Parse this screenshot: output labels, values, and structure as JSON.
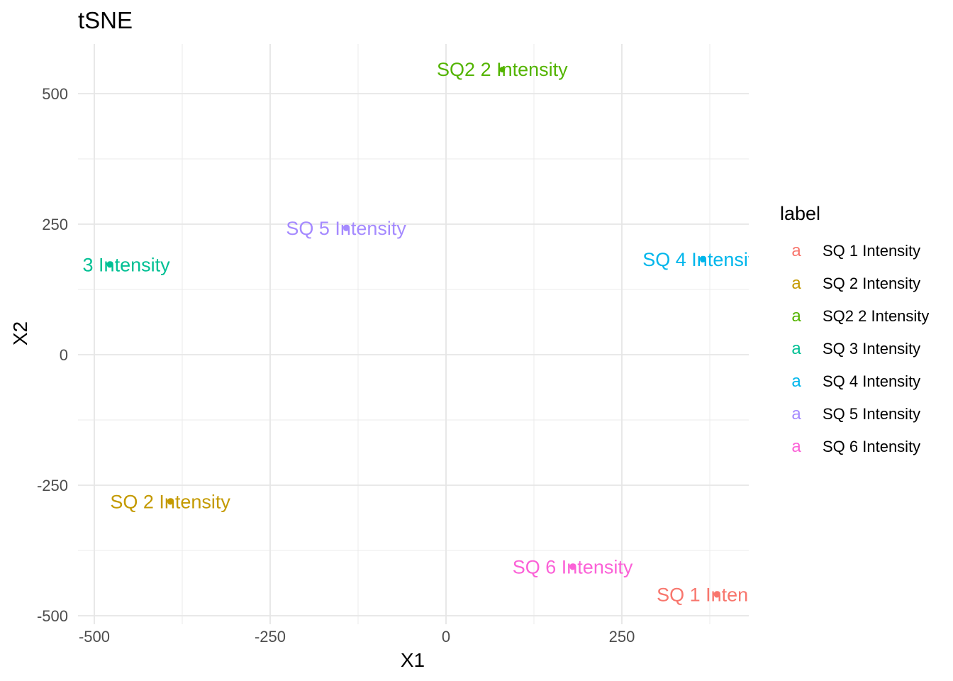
{
  "chart_data": {
    "type": "scatter",
    "title": "tSNE",
    "xlabel": "X1",
    "ylabel": "X2",
    "xlim": [
      -500,
      430
    ],
    "ylim": [
      -500,
      590
    ],
    "x_ticks": [
      -500,
      -250,
      0,
      250
    ],
    "x_tick_labels": [
      "-500",
      "-250",
      "0",
      "250"
    ],
    "y_ticks": [
      -500,
      -250,
      0,
      250,
      500
    ],
    "y_tick_labels": [
      "-500",
      "-250",
      "0",
      "250",
      "500"
    ],
    "grid": true,
    "legend": {
      "title": "label",
      "position": "right",
      "key_glyph": "a",
      "entries": [
        {
          "name": "SQ 1 Intensity",
          "color": "#F8766D"
        },
        {
          "name": "SQ 2 Intensity",
          "color": "#C49A00"
        },
        {
          "name": "SQ2 2 Intensity",
          "color": "#53B400"
        },
        {
          "name": "SQ 3 Intensity",
          "color": "#00C094"
        },
        {
          "name": "SQ 4 Intensity",
          "color": "#00B6EB"
        },
        {
          "name": "SQ 5 Intensity",
          "color": "#A58AFF"
        },
        {
          "name": "SQ 6 Intensity",
          "color": "#FB61D7"
        }
      ]
    },
    "series": [
      {
        "name": "SQ 1 Intensity",
        "color": "#F8766D",
        "x": 385,
        "y": -460,
        "label": "SQ 1 Intensity"
      },
      {
        "name": "SQ 2 Intensity",
        "color": "#C49A00",
        "x": -392,
        "y": -282,
        "label": "SQ 2 Intensity"
      },
      {
        "name": "SQ2 2 Intensity",
        "color": "#53B400",
        "x": 80,
        "y": 546,
        "label": "SQ2 2 Intensity"
      },
      {
        "name": "SQ 3 Intensity",
        "color": "#00C094",
        "x": -478,
        "y": 172,
        "label": "SQ 3 Intensity"
      },
      {
        "name": "SQ 4 Intensity",
        "color": "#00B6EB",
        "x": 365,
        "y": 182,
        "label": "SQ 4 Intensity"
      },
      {
        "name": "SQ 5 Intensity",
        "color": "#A58AFF",
        "x": -142,
        "y": 242,
        "label": "SQ 5 Intensity"
      },
      {
        "name": "SQ 6 Intensity",
        "color": "#FB61D7",
        "x": 180,
        "y": -407,
        "label": "SQ 6 Intensity"
      }
    ]
  }
}
